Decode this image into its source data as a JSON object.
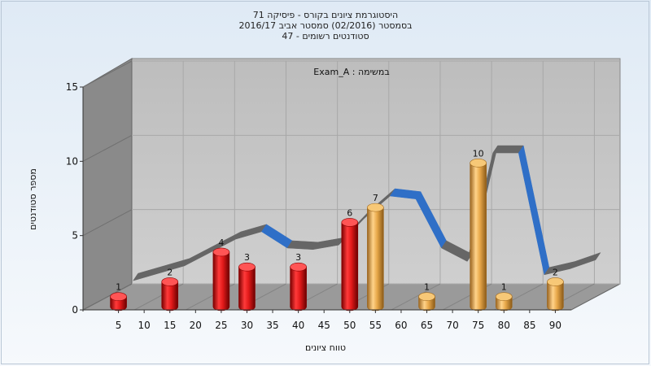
{
  "titles": [
    "היסטוגרמת ציונים בקורס - פיסיקה 71",
    "בסמסטר  (02/2016)  סמסטר אביב 2016/17",
    "סטודנטים רשומים - 47"
  ],
  "colors": {
    "red": "#e21a1a",
    "orange": "#e8a84a",
    "ribbon_gray": "#666666",
    "ribbon_blue": "#2f6fc7",
    "wall": "#8a8a8a",
    "floor": "#9a9a9a",
    "back": "#c4c4c4"
  },
  "chart_data": {
    "type": "bar",
    "title": "היסטוגרמת ציונים בקורס - פיסיקה 71",
    "annotation": "Exam_A : במשימה",
    "xlabel": "טווח ציונים",
    "ylabel": "מספר סטודנטים",
    "ylim": [
      0,
      15
    ],
    "yticks": [
      0,
      5,
      10,
      15
    ],
    "xticks": [
      5,
      10,
      15,
      20,
      25,
      30,
      35,
      40,
      45,
      50,
      55,
      60,
      65,
      70,
      75,
      80,
      85,
      90
    ],
    "bars": [
      {
        "x": 5,
        "value": 1,
        "color": "red"
      },
      {
        "x": 15,
        "value": 2,
        "color": "red"
      },
      {
        "x": 25,
        "value": 4,
        "color": "red"
      },
      {
        "x": 30,
        "value": 3,
        "color": "red"
      },
      {
        "x": 40,
        "value": 3,
        "color": "red"
      },
      {
        "x": 50,
        "value": 6,
        "color": "red"
      },
      {
        "x": 55,
        "value": 7,
        "color": "orange"
      },
      {
        "x": 65,
        "value": 1,
        "color": "orange"
      },
      {
        "x": 75,
        "value": 10,
        "color": "orange"
      },
      {
        "x": 80,
        "value": 1,
        "color": "orange"
      },
      {
        "x": 90,
        "value": 2,
        "color": "orange"
      }
    ],
    "trend_line": [
      {
        "x": 5,
        "y": 1
      },
      {
        "x": 15,
        "y": 2
      },
      {
        "x": 25,
        "y": 3.8
      },
      {
        "x": 30,
        "y": 4.3
      },
      {
        "x": 35,
        "y": 3.2
      },
      {
        "x": 40,
        "y": 3.1
      },
      {
        "x": 45,
        "y": 3.4
      },
      {
        "x": 50,
        "y": 5.2
      },
      {
        "x": 55,
        "y": 6.7
      },
      {
        "x": 60,
        "y": 6.5
      },
      {
        "x": 65,
        "y": 3.2
      },
      {
        "x": 70,
        "y": 2.3
      },
      {
        "x": 75,
        "y": 9.6
      },
      {
        "x": 80,
        "y": 9.6
      },
      {
        "x": 85,
        "y": 1.4
      },
      {
        "x": 90,
        "y": 1.8
      },
      {
        "x": 95,
        "y": 2.4
      }
    ],
    "grid": true
  }
}
